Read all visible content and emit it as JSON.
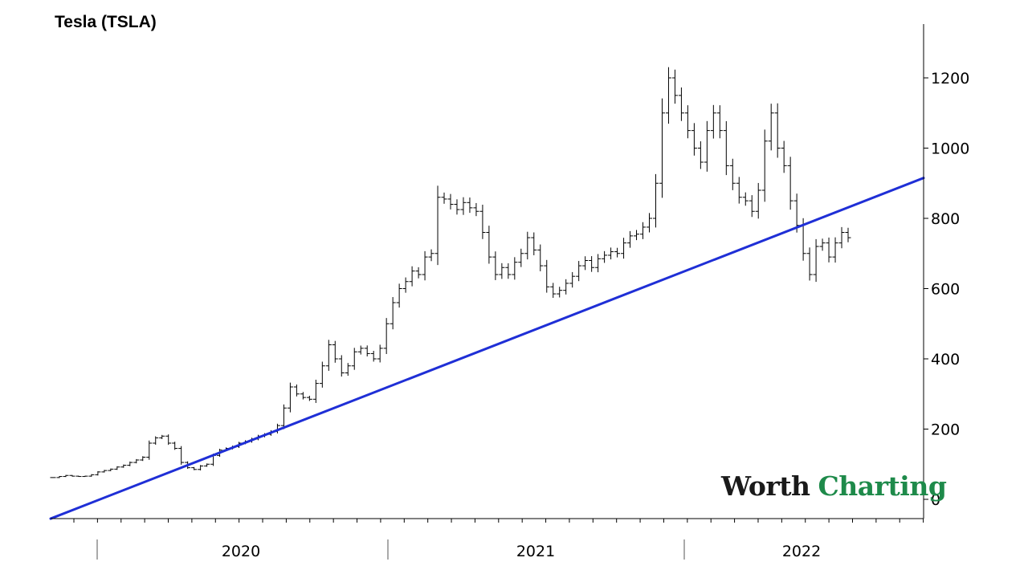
{
  "chart_data": {
    "type": "ohlc",
    "title": "Tesla (TSLA)",
    "xlabel": "",
    "ylabel": "",
    "y_range": [
      -55,
      1360
    ],
    "y_ticks": [
      0,
      200,
      400,
      600,
      800,
      1000,
      1200
    ],
    "x_categories": [
      "2020",
      "2021",
      "2022"
    ],
    "axis_position": "right",
    "grid": false,
    "trendline": {
      "color": "#1f2fd6",
      "start": {
        "week": 0,
        "value": -55
      },
      "end": {
        "week": 119,
        "value": 915
      }
    },
    "weekly_close": [
      62,
      65,
      68,
      66,
      65,
      66,
      70,
      78,
      82,
      86,
      92,
      97,
      105,
      112,
      120,
      160,
      175,
      180,
      160,
      145,
      105,
      90,
      85,
      95,
      100,
      125,
      140,
      145,
      150,
      160,
      165,
      172,
      180,
      185,
      193,
      210,
      260,
      320,
      300,
      290,
      285,
      330,
      380,
      440,
      400,
      360,
      380,
      420,
      430,
      415,
      400,
      430,
      500,
      560,
      600,
      620,
      650,
      640,
      690,
      700,
      860,
      855,
      840,
      825,
      845,
      830,
      820,
      760,
      690,
      640,
      660,
      640,
      675,
      700,
      745,
      710,
      665,
      605,
      585,
      595,
      615,
      635,
      665,
      680,
      660,
      685,
      695,
      705,
      700,
      730,
      750,
      755,
      775,
      800,
      900,
      1100,
      1200,
      1150,
      1100,
      1050,
      1000,
      960,
      1050,
      1100,
      1050,
      950,
      900,
      860,
      850,
      820,
      880,
      1020,
      1100,
      1000,
      950,
      850,
      780,
      700,
      640,
      720,
      730,
      690,
      730,
      760,
      745
    ]
  },
  "logo": {
    "part1": "Worth",
    "part2": "Charting"
  }
}
